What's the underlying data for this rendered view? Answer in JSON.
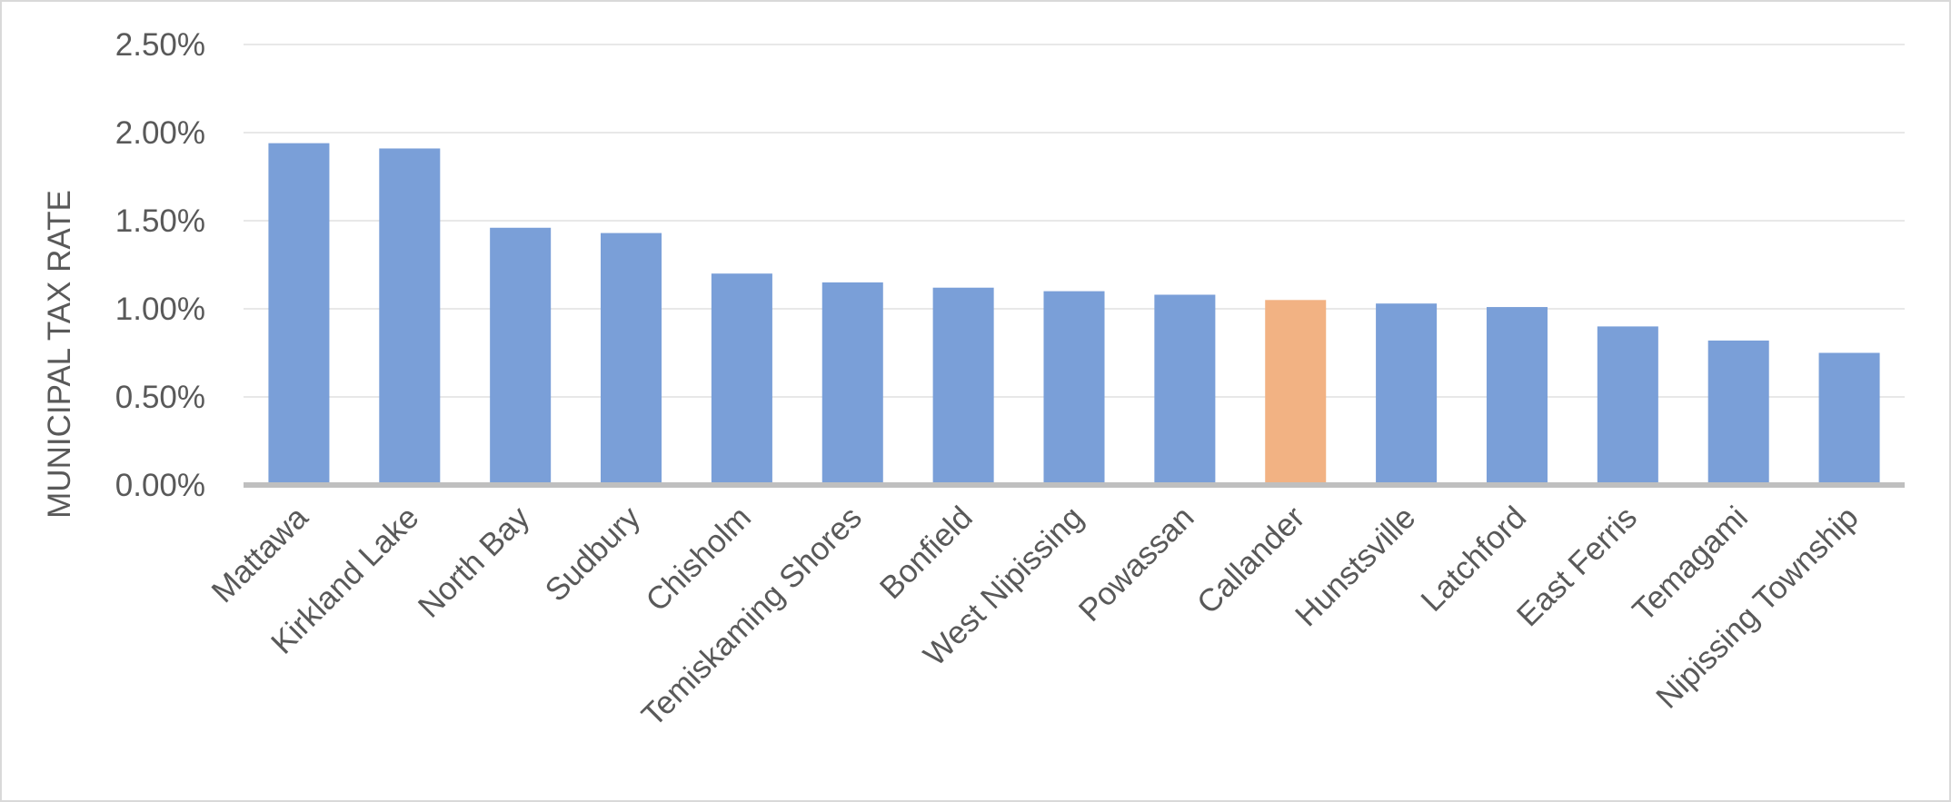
{
  "chart_data": {
    "type": "bar",
    "title": "",
    "xlabel": "",
    "ylabel": "MUNICIPAL TAX RATE",
    "categories": [
      "Mattawa",
      "Kirkland Lake",
      "North Bay",
      "Sudbury",
      "Chisholm",
      "Temiskaming Shores",
      "Bonfield",
      "West Nipissing",
      "Powassan",
      "Callander",
      "Hunstsville",
      "Latchford",
      "East Ferris",
      "Temagami",
      "Nipissing Township"
    ],
    "values": [
      1.94,
      1.91,
      1.46,
      1.43,
      1.2,
      1.15,
      1.12,
      1.1,
      1.08,
      1.05,
      1.03,
      1.01,
      0.9,
      0.82,
      0.75
    ],
    "value_unit": "%",
    "ylim": [
      0,
      2.5
    ],
    "yticks": [
      0,
      0.5,
      1.0,
      1.5,
      2.0,
      2.5
    ],
    "ytick_labels": [
      "0.00%",
      "0.50%",
      "1.00%",
      "1.50%",
      "2.00%",
      "2.50%"
    ],
    "grid": true,
    "legend": false,
    "highlight_category": "Callander",
    "colors": {
      "bar": "#7a9fd8",
      "highlight_bar": "#f2b283",
      "gridline": "#e8e8e8",
      "baseline": "#bfbfbf",
      "text": "#595959"
    }
  }
}
